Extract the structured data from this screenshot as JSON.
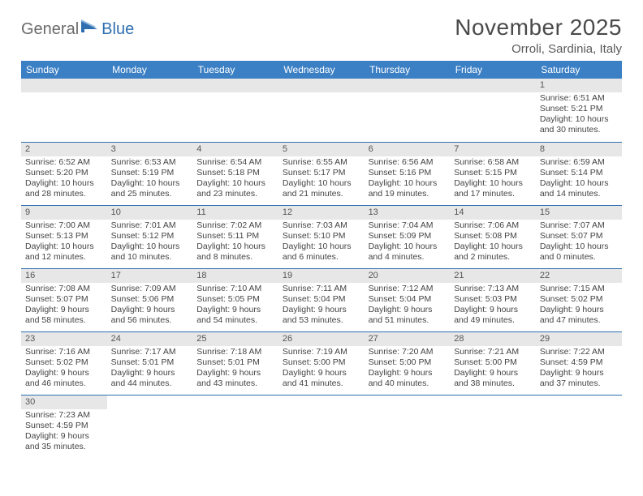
{
  "logo": {
    "part1": "General",
    "part2": "Blue"
  },
  "title": "November 2025",
  "location": "Orroli, Sardinia, Italy",
  "colors": {
    "header_bg": "#3b7fc4",
    "header_text": "#ffffff",
    "daynum_bg": "#e7e7e7",
    "rule": "#2f6fb0",
    "logo_gray": "#6a6a6a",
    "logo_blue": "#2f6fb0"
  },
  "weekdays": [
    "Sunday",
    "Monday",
    "Tuesday",
    "Wednesday",
    "Thursday",
    "Friday",
    "Saturday"
  ],
  "layout": {
    "first_weekday_index": 6,
    "days_in_month": 30
  },
  "days": {
    "1": {
      "sunrise": "6:51 AM",
      "sunset": "5:21 PM",
      "daylight": "10 hours and 30 minutes."
    },
    "2": {
      "sunrise": "6:52 AM",
      "sunset": "5:20 PM",
      "daylight": "10 hours and 28 minutes."
    },
    "3": {
      "sunrise": "6:53 AM",
      "sunset": "5:19 PM",
      "daylight": "10 hours and 25 minutes."
    },
    "4": {
      "sunrise": "6:54 AM",
      "sunset": "5:18 PM",
      "daylight": "10 hours and 23 minutes."
    },
    "5": {
      "sunrise": "6:55 AM",
      "sunset": "5:17 PM",
      "daylight": "10 hours and 21 minutes."
    },
    "6": {
      "sunrise": "6:56 AM",
      "sunset": "5:16 PM",
      "daylight": "10 hours and 19 minutes."
    },
    "7": {
      "sunrise": "6:58 AM",
      "sunset": "5:15 PM",
      "daylight": "10 hours and 17 minutes."
    },
    "8": {
      "sunrise": "6:59 AM",
      "sunset": "5:14 PM",
      "daylight": "10 hours and 14 minutes."
    },
    "9": {
      "sunrise": "7:00 AM",
      "sunset": "5:13 PM",
      "daylight": "10 hours and 12 minutes."
    },
    "10": {
      "sunrise": "7:01 AM",
      "sunset": "5:12 PM",
      "daylight": "10 hours and 10 minutes."
    },
    "11": {
      "sunrise": "7:02 AM",
      "sunset": "5:11 PM",
      "daylight": "10 hours and 8 minutes."
    },
    "12": {
      "sunrise": "7:03 AM",
      "sunset": "5:10 PM",
      "daylight": "10 hours and 6 minutes."
    },
    "13": {
      "sunrise": "7:04 AM",
      "sunset": "5:09 PM",
      "daylight": "10 hours and 4 minutes."
    },
    "14": {
      "sunrise": "7:06 AM",
      "sunset": "5:08 PM",
      "daylight": "10 hours and 2 minutes."
    },
    "15": {
      "sunrise": "7:07 AM",
      "sunset": "5:07 PM",
      "daylight": "10 hours and 0 minutes."
    },
    "16": {
      "sunrise": "7:08 AM",
      "sunset": "5:07 PM",
      "daylight": "9 hours and 58 minutes."
    },
    "17": {
      "sunrise": "7:09 AM",
      "sunset": "5:06 PM",
      "daylight": "9 hours and 56 minutes."
    },
    "18": {
      "sunrise": "7:10 AM",
      "sunset": "5:05 PM",
      "daylight": "9 hours and 54 minutes."
    },
    "19": {
      "sunrise": "7:11 AM",
      "sunset": "5:04 PM",
      "daylight": "9 hours and 53 minutes."
    },
    "20": {
      "sunrise": "7:12 AM",
      "sunset": "5:04 PM",
      "daylight": "9 hours and 51 minutes."
    },
    "21": {
      "sunrise": "7:13 AM",
      "sunset": "5:03 PM",
      "daylight": "9 hours and 49 minutes."
    },
    "22": {
      "sunrise": "7:15 AM",
      "sunset": "5:02 PM",
      "daylight": "9 hours and 47 minutes."
    },
    "23": {
      "sunrise": "7:16 AM",
      "sunset": "5:02 PM",
      "daylight": "9 hours and 46 minutes."
    },
    "24": {
      "sunrise": "7:17 AM",
      "sunset": "5:01 PM",
      "daylight": "9 hours and 44 minutes."
    },
    "25": {
      "sunrise": "7:18 AM",
      "sunset": "5:01 PM",
      "daylight": "9 hours and 43 minutes."
    },
    "26": {
      "sunrise": "7:19 AM",
      "sunset": "5:00 PM",
      "daylight": "9 hours and 41 minutes."
    },
    "27": {
      "sunrise": "7:20 AM",
      "sunset": "5:00 PM",
      "daylight": "9 hours and 40 minutes."
    },
    "28": {
      "sunrise": "7:21 AM",
      "sunset": "5:00 PM",
      "daylight": "9 hours and 38 minutes."
    },
    "29": {
      "sunrise": "7:22 AM",
      "sunset": "4:59 PM",
      "daylight": "9 hours and 37 minutes."
    },
    "30": {
      "sunrise": "7:23 AM",
      "sunset": "4:59 PM",
      "daylight": "9 hours and 35 minutes."
    }
  },
  "labels": {
    "sunrise": "Sunrise: ",
    "sunset": "Sunset: ",
    "daylight": "Daylight: "
  }
}
